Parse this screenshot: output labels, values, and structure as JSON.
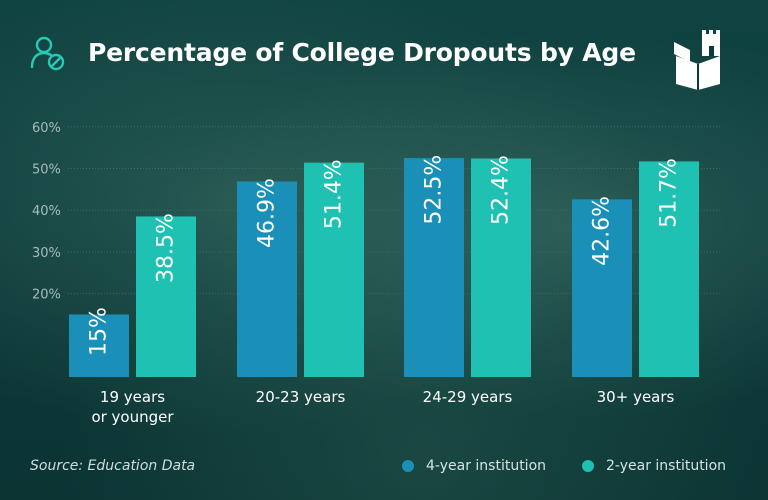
{
  "header": {
    "title": "Percentage of College Dropouts by Age",
    "icon": "user-stats-icon",
    "logo": "open-book-castle-logo"
  },
  "source": "Source: Education Data",
  "colors": {
    "series_4yr": "#1a8fb8",
    "series_2yr": "#1fc2b2",
    "axis_text": "#a6bcbb",
    "grid": "#3f6a67",
    "accent_icon": "#27c9b8"
  },
  "chart_data": {
    "type": "bar",
    "title": "Percentage of College Dropouts by Age",
    "xlabel": "",
    "ylabel": "",
    "categories": [
      "19 years\nor younger",
      "20-23 years",
      "24-29 years",
      "30+ years"
    ],
    "series": [
      {
        "name": "4-year institution",
        "values": [
          15,
          46.9,
          52.5,
          42.6
        ],
        "labels": [
          "15%",
          "46.9%",
          "52.5%",
          "42.6%"
        ]
      },
      {
        "name": "2-year institution",
        "values": [
          38.5,
          51.4,
          52.4,
          51.7
        ],
        "labels": [
          "38.5%",
          "51.4%",
          "52.4%",
          "51.7%"
        ]
      }
    ],
    "yticks": [
      "20%",
      "30%",
      "40%",
      "50%",
      "60%"
    ],
    "ylim": [
      0,
      60
    ],
    "grid": true,
    "legend_position": "bottom-right"
  }
}
